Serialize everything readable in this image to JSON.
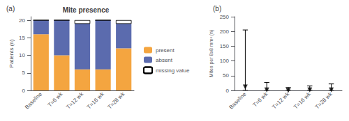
{
  "chart_data": [
    {
      "type": "bar",
      "title": "Mite presence",
      "ylabel": "Patients (n)",
      "annotation": "(a)",
      "categories": [
        "Baseline",
        "T=6 wk",
        "T=12 wk",
        "T=16 wk",
        "T=28 wk"
      ],
      "series": [
        {
          "name": "present",
          "color": "#F4A540",
          "values": [
            16,
            10,
            6,
            6,
            12
          ]
        },
        {
          "name": "absent",
          "color": "#5B6BAE",
          "values": [
            4,
            10,
            13,
            14,
            7
          ]
        },
        {
          "name": "missing value",
          "color": "#ffffff",
          "values": [
            0,
            0,
            1,
            0,
            1
          ]
        }
      ],
      "stacked": true,
      "legend": "right",
      "grid": false,
      "ylim": [
        0,
        21
      ],
      "yticks": [
        0,
        5,
        10,
        15,
        20
      ]
    },
    {
      "type": "scatter",
      "ylabel": "Mites per 8x8 mm² (n)",
      "annotation": "(b)",
      "categories": [
        "Baseline",
        "T=6 wk",
        "T=12 wk",
        "T=16 wk",
        "T=28 wk"
      ],
      "values": [
        12,
        2,
        0,
        2,
        2
      ],
      "low": [
        0,
        0,
        0,
        0,
        0
      ],
      "high": [
        205,
        27,
        10,
        15,
        22
      ],
      "color": "#000000",
      "marker": "triangle-down",
      "grid": false,
      "ylim": [
        0,
        250
      ],
      "yticks": [
        0,
        50,
        100,
        150,
        200,
        250
      ]
    }
  ]
}
